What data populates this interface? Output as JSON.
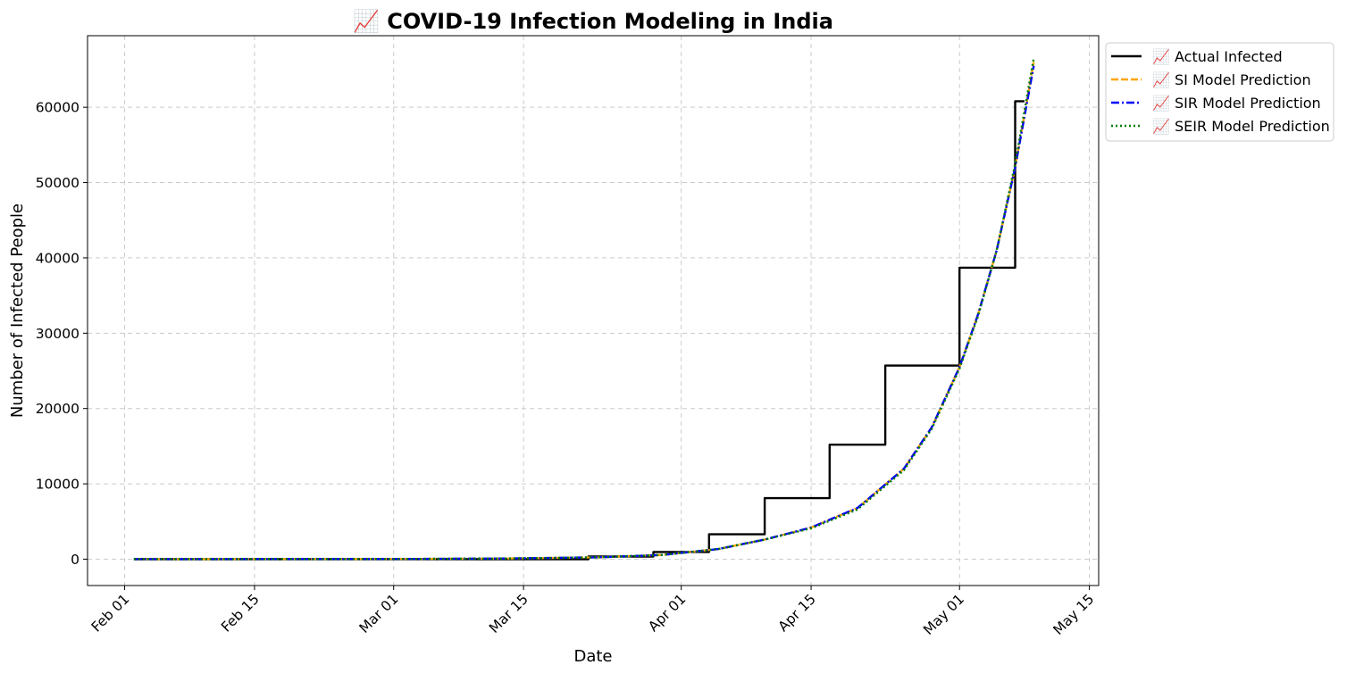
{
  "chart_data": {
    "type": "line",
    "title": "📈 COVID-19 Infection Modeling in India",
    "xlabel": "Date",
    "ylabel": "Number of Infected People",
    "x_ticks": [
      "Feb 01",
      "Feb 15",
      "Mar 01",
      "Mar 15",
      "Apr 01",
      "Apr 15",
      "May 01",
      "May 15"
    ],
    "y_ticks": [
      "0",
      "10000",
      "20000",
      "30000",
      "40000",
      "50000",
      "60000"
    ],
    "xlim": [
      "2020-01-28",
      "2020-05-16"
    ],
    "ylim": [
      -3500,
      69500
    ],
    "grid": true,
    "legend_position": "outside-top-right",
    "series": [
      {
        "name": "📈 Actual Infected",
        "color": "#000000",
        "style": "solid",
        "points": [
          [
            "2020-02-02",
            0
          ],
          [
            "2020-03-22",
            0
          ],
          [
            "2020-03-22",
            350
          ],
          [
            "2020-03-29",
            350
          ],
          [
            "2020-03-29",
            950
          ],
          [
            "2020-04-04",
            950
          ],
          [
            "2020-04-04",
            3300
          ],
          [
            "2020-04-10",
            3300
          ],
          [
            "2020-04-10",
            8100
          ],
          [
            "2020-04-17",
            8100
          ],
          [
            "2020-04-17",
            15200
          ],
          [
            "2020-04-23",
            15200
          ],
          [
            "2020-04-23",
            25700
          ],
          [
            "2020-05-01",
            25700
          ],
          [
            "2020-05-01",
            38700
          ],
          [
            "2020-05-07",
            38700
          ],
          [
            "2020-05-07",
            60800
          ],
          [
            "2020-05-08",
            60800
          ]
        ]
      },
      {
        "name": "📈 SI Model Prediction",
        "color": "#ffa500",
        "style": "dashed",
        "points": [
          [
            "2020-02-02",
            3
          ],
          [
            "2020-02-12",
            6
          ],
          [
            "2020-02-22",
            15
          ],
          [
            "2020-03-03",
            35
          ],
          [
            "2020-03-13",
            85
          ],
          [
            "2020-03-23",
            250
          ],
          [
            "2020-03-30",
            560
          ],
          [
            "2020-04-05",
            1350
          ],
          [
            "2020-04-10",
            2600
          ],
          [
            "2020-04-15",
            4200
          ],
          [
            "2020-04-20",
            6800
          ],
          [
            "2020-04-25",
            12000
          ],
          [
            "2020-04-28",
            17500
          ],
          [
            "2020-05-01",
            25500
          ],
          [
            "2020-05-03",
            32500
          ],
          [
            "2020-05-05",
            41000
          ],
          [
            "2020-05-07",
            52000
          ],
          [
            "2020-05-09",
            66000
          ]
        ]
      },
      {
        "name": "📈 SIR Model Prediction",
        "color": "#0000ff",
        "style": "dashdot",
        "points": [
          [
            "2020-02-02",
            3
          ],
          [
            "2020-02-12",
            6
          ],
          [
            "2020-02-22",
            15
          ],
          [
            "2020-03-03",
            35
          ],
          [
            "2020-03-13",
            85
          ],
          [
            "2020-03-23",
            250
          ],
          [
            "2020-03-30",
            560
          ],
          [
            "2020-04-05",
            1350
          ],
          [
            "2020-04-10",
            2600
          ],
          [
            "2020-04-15",
            4200
          ],
          [
            "2020-04-20",
            6800
          ],
          [
            "2020-04-25",
            12000
          ],
          [
            "2020-04-28",
            17500
          ],
          [
            "2020-05-01",
            25500
          ],
          [
            "2020-05-03",
            32500
          ],
          [
            "2020-05-05",
            41000
          ],
          [
            "2020-05-07",
            52000
          ],
          [
            "2020-05-09",
            65500
          ]
        ]
      },
      {
        "name": "📈 SEIR Model Prediction",
        "color": "#008000",
        "style": "dotted",
        "points": [
          [
            "2020-02-02",
            3
          ],
          [
            "2020-02-12",
            6
          ],
          [
            "2020-02-22",
            15
          ],
          [
            "2020-03-03",
            35
          ],
          [
            "2020-03-13",
            85
          ],
          [
            "2020-03-23",
            250
          ],
          [
            "2020-03-30",
            560
          ],
          [
            "2020-04-05",
            1350
          ],
          [
            "2020-04-10",
            2600
          ],
          [
            "2020-04-15",
            4100
          ],
          [
            "2020-04-20",
            6600
          ],
          [
            "2020-04-25",
            11800
          ],
          [
            "2020-04-28",
            17300
          ],
          [
            "2020-05-01",
            25300
          ],
          [
            "2020-05-03",
            32300
          ],
          [
            "2020-05-05",
            41000
          ],
          [
            "2020-05-07",
            52500
          ],
          [
            "2020-05-09",
            66500
          ]
        ]
      }
    ]
  }
}
